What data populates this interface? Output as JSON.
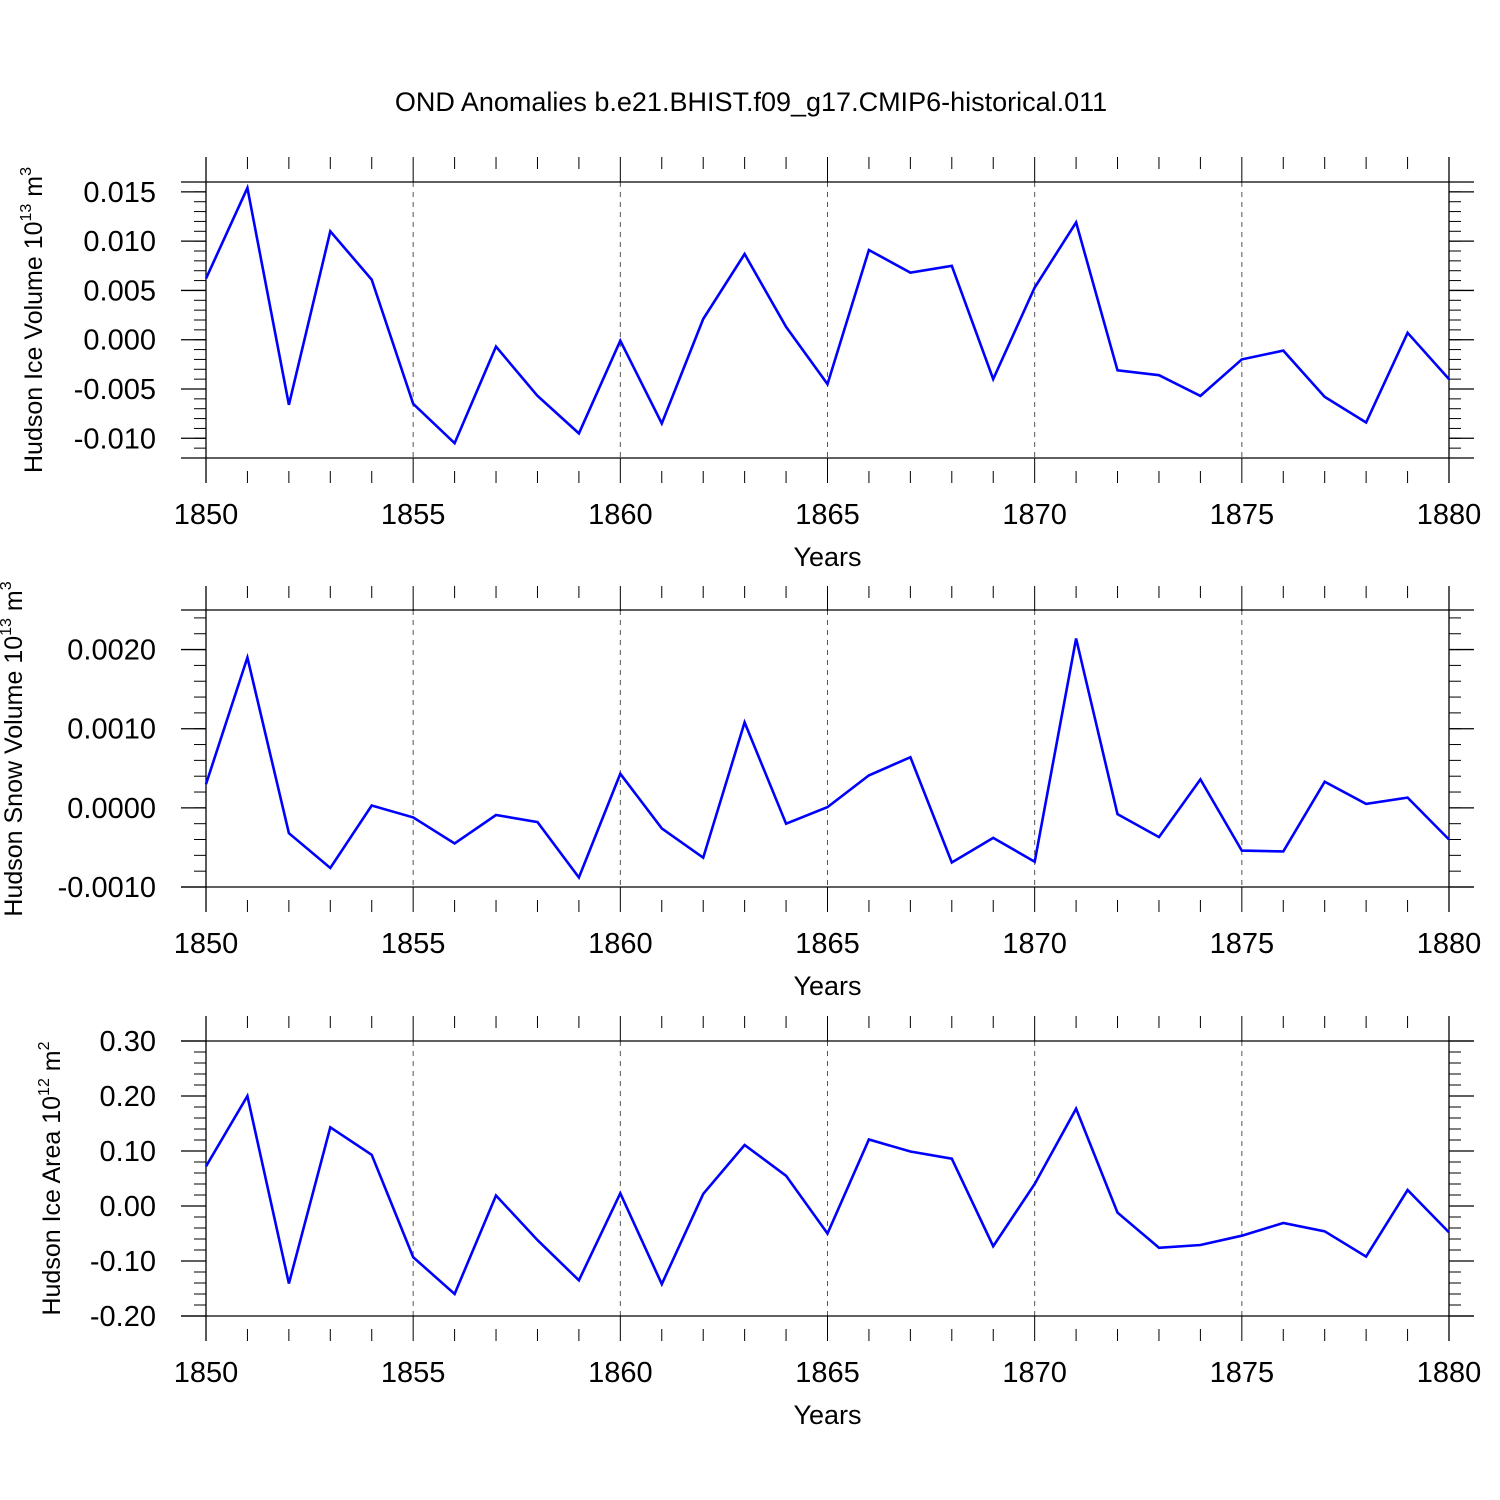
{
  "title": "OND Anomalies b.e21.BHIST.f09_g17.CMIP6-historical.011",
  "line_color": "#0000ff",
  "chart_data": [
    {
      "type": "line",
      "title": "",
      "xlabel": "Years",
      "ylabel": {
        "prefix": "Hudson Ice Volume 10",
        "exp": "13",
        "unit": " m",
        "unit_exp": "3"
      },
      "xlim": [
        1850,
        1880
      ],
      "ylim": [
        -0.012,
        0.016
      ],
      "x_ticks": [
        1850,
        1855,
        1860,
        1865,
        1870,
        1875,
        1880
      ],
      "x_tick_labels": [
        "1850",
        "1855",
        "1860",
        "1865",
        "1870",
        "1875",
        "1880"
      ],
      "y_ticks": [
        -0.01,
        -0.005,
        0.0,
        0.005,
        0.01,
        0.015
      ],
      "y_tick_labels": [
        "-0.010",
        "-0.005",
        "0.000",
        "0.005",
        "0.010",
        "0.015"
      ],
      "x": [
        1850,
        1851,
        1852,
        1853,
        1854,
        1855,
        1856,
        1857,
        1858,
        1859,
        1860,
        1861,
        1862,
        1863,
        1864,
        1865,
        1866,
        1867,
        1868,
        1869,
        1870,
        1871,
        1872,
        1873,
        1874,
        1875,
        1876,
        1877,
        1878,
        1879,
        1880
      ],
      "series": [
        {
          "name": "Hudson Ice Volume",
          "values": [
            0.0062,
            0.0154,
            -0.0066,
            0.011,
            0.0061,
            -0.0065,
            -0.0105,
            -0.0007,
            -0.0057,
            -0.0095,
            -0.0001,
            -0.0085,
            0.0021,
            0.0087,
            0.0013,
            -0.0045,
            0.0091,
            0.0068,
            0.0075,
            -0.004,
            0.0053,
            0.0119,
            -0.0031,
            -0.0036,
            -0.0057,
            -0.002,
            -0.0011,
            -0.0058,
            -0.0084,
            0.0007,
            -0.004
          ]
        }
      ]
    },
    {
      "type": "line",
      "title": "",
      "xlabel": "Years",
      "ylabel": {
        "prefix": "Hudson Snow Volume 10",
        "exp": "13",
        "unit": " m",
        "unit_exp": "3"
      },
      "xlim": [
        1850,
        1880
      ],
      "ylim": [
        -0.001,
        0.0025
      ],
      "x_ticks": [
        1850,
        1855,
        1860,
        1865,
        1870,
        1875,
        1880
      ],
      "x_tick_labels": [
        "1850",
        "1855",
        "1860",
        "1865",
        "1870",
        "1875",
        "1880"
      ],
      "y_ticks": [
        -0.001,
        0.0,
        0.001,
        0.002
      ],
      "y_tick_labels": [
        "-0.0010",
        "0.0000",
        "0.0010",
        "0.0020"
      ],
      "x": [
        1850,
        1851,
        1852,
        1853,
        1854,
        1855,
        1856,
        1857,
        1858,
        1859,
        1860,
        1861,
        1862,
        1863,
        1864,
        1865,
        1866,
        1867,
        1868,
        1869,
        1870,
        1871,
        1872,
        1873,
        1874,
        1875,
        1876,
        1877,
        1878,
        1879,
        1880
      ],
      "series": [
        {
          "name": "Hudson Snow Volume",
          "values": [
            0.0003,
            0.0019,
            -0.00032,
            -0.00076,
            3e-05,
            -0.00012,
            -0.00045,
            -9e-05,
            -0.00018,
            -0.00088,
            0.00043,
            -0.00026,
            -0.00063,
            0.00108,
            -0.0002,
            1e-05,
            0.00041,
            0.00064,
            -0.00069,
            -0.00038,
            -0.00068,
            0.00214,
            -8e-05,
            -0.00037,
            0.00036,
            -0.00054,
            -0.00055,
            0.00033,
            5e-05,
            0.00013,
            -0.0004
          ]
        }
      ]
    },
    {
      "type": "line",
      "title": "",
      "xlabel": "Years",
      "ylabel": {
        "prefix": "Hudson Ice Area 10",
        "exp": "12",
        "unit": " m",
        "unit_exp": "2"
      },
      "xlim": [
        1850,
        1880
      ],
      "ylim": [
        -0.2,
        0.3
      ],
      "x_ticks": [
        1850,
        1855,
        1860,
        1865,
        1870,
        1875,
        1880
      ],
      "x_tick_labels": [
        "1850",
        "1855",
        "1860",
        "1865",
        "1870",
        "1875",
        "1880"
      ],
      "y_ticks": [
        -0.2,
        -0.1,
        0.0,
        0.1,
        0.2,
        0.3
      ],
      "y_tick_labels": [
        "-0.20",
        "-0.10",
        "0.00",
        "0.10",
        "0.20",
        "0.30"
      ],
      "x": [
        1850,
        1851,
        1852,
        1853,
        1854,
        1855,
        1856,
        1857,
        1858,
        1859,
        1860,
        1861,
        1862,
        1863,
        1864,
        1865,
        1866,
        1867,
        1868,
        1869,
        1870,
        1871,
        1872,
        1873,
        1874,
        1875,
        1876,
        1877,
        1878,
        1879,
        1880
      ],
      "series": [
        {
          "name": "Hudson Ice Area",
          "values": [
            0.072,
            0.2,
            -0.141,
            0.143,
            0.093,
            -0.093,
            -0.16,
            0.019,
            -0.062,
            -0.135,
            0.023,
            -0.142,
            0.022,
            0.111,
            0.055,
            -0.05,
            0.121,
            0.099,
            0.086,
            -0.073,
            0.04,
            0.177,
            -0.012,
            -0.076,
            -0.071,
            -0.054,
            -0.031,
            -0.046,
            -0.092,
            0.029,
            -0.048
          ]
        }
      ]
    }
  ]
}
